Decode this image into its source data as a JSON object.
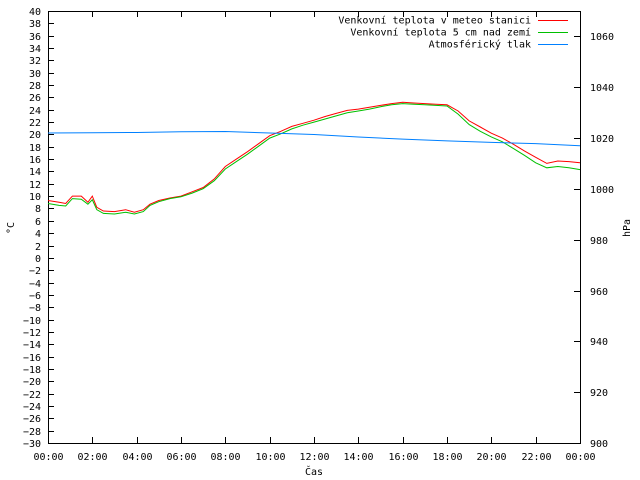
{
  "chart_data": {
    "type": "line",
    "title": "",
    "xlabel": "Čas",
    "ylabel": "°C",
    "y2label": "hPa",
    "xlim": [
      0,
      24
    ],
    "ylim": [
      -30,
      40
    ],
    "y2lim": [
      900,
      1070
    ],
    "x_ticks": [
      "00:00",
      "02:00",
      "04:00",
      "06:00",
      "08:00",
      "10:00",
      "12:00",
      "14:00",
      "16:00",
      "18:00",
      "20:00",
      "22:00",
      "00:00"
    ],
    "y_ticks": [
      40,
      38,
      36,
      34,
      32,
      30,
      28,
      26,
      24,
      22,
      20,
      18,
      16,
      14,
      12,
      10,
      8,
      6,
      4,
      2,
      0,
      -2,
      -4,
      -6,
      -8,
      -10,
      -12,
      -14,
      -16,
      -18,
      -20,
      -22,
      -24,
      -26,
      -28,
      -30
    ],
    "y2_ticks": [
      1060,
      1040,
      1020,
      1000,
      980,
      960,
      940,
      920,
      900
    ],
    "legend_position": "top-right",
    "grid": false,
    "series": [
      {
        "name": "Venkovní teplota v meteo stanici",
        "color": "#ff0000",
        "axis": "left",
        "x": [
          0,
          0.5,
          0.8,
          1.1,
          1.5,
          1.8,
          2.0,
          2.2,
          2.5,
          3.0,
          3.5,
          3.9,
          4.3,
          4.6,
          5.0,
          5.5,
          6.0,
          6.5,
          7.0,
          7.5,
          8.0,
          8.5,
          9.0,
          9.5,
          10.0,
          10.5,
          11.0,
          11.5,
          12.0,
          12.5,
          13.0,
          13.5,
          14.0,
          14.5,
          15.0,
          15.5,
          16.0,
          16.5,
          17.0,
          17.5,
          18.0,
          18.5,
          19.0,
          19.5,
          20.0,
          20.5,
          21.0,
          21.5,
          22.0,
          22.5,
          23.0,
          23.5,
          24.0
        ],
        "values": [
          9.3,
          9.0,
          8.8,
          10.0,
          10.0,
          9.0,
          10.0,
          8.2,
          7.6,
          7.5,
          7.8,
          7.4,
          7.8,
          8.7,
          9.3,
          9.7,
          10.0,
          10.7,
          11.4,
          12.8,
          14.8,
          16.0,
          17.2,
          18.5,
          19.8,
          20.5,
          21.3,
          21.8,
          22.3,
          22.9,
          23.4,
          23.9,
          24.1,
          24.4,
          24.7,
          25.0,
          25.2,
          25.1,
          25.0,
          24.9,
          24.8,
          23.8,
          22.2,
          21.2,
          20.2,
          19.4,
          18.4,
          17.3,
          16.3,
          15.3,
          15.7,
          15.6,
          15.4
        ]
      },
      {
        "name": "Venkovní teplota 5 cm nad zemí",
        "color": "#00c000",
        "axis": "left",
        "x": [
          0,
          0.5,
          0.8,
          1.1,
          1.5,
          1.8,
          2.0,
          2.2,
          2.5,
          3.0,
          3.5,
          3.9,
          4.3,
          4.6,
          5.0,
          5.5,
          6.0,
          6.5,
          7.0,
          7.5,
          8.0,
          8.5,
          9.0,
          9.5,
          10.0,
          10.5,
          11.0,
          11.5,
          12.0,
          12.5,
          13.0,
          13.5,
          14.0,
          14.5,
          15.0,
          15.5,
          16.0,
          16.5,
          17.0,
          17.5,
          18.0,
          18.5,
          19.0,
          19.5,
          20.0,
          20.5,
          21.0,
          21.5,
          22.0,
          22.5,
          23.0,
          23.5,
          24.0
        ],
        "values": [
          8.8,
          8.5,
          8.4,
          9.6,
          9.5,
          8.7,
          9.4,
          7.8,
          7.2,
          7.1,
          7.4,
          7.1,
          7.5,
          8.5,
          9.1,
          9.6,
          9.9,
          10.5,
          11.2,
          12.5,
          14.4,
          15.6,
          16.8,
          18.1,
          19.4,
          20.1,
          20.9,
          21.5,
          22.0,
          22.5,
          23.0,
          23.5,
          23.8,
          24.1,
          24.5,
          24.8,
          25.0,
          24.9,
          24.8,
          24.7,
          24.6,
          23.3,
          21.6,
          20.5,
          19.6,
          18.8,
          17.7,
          16.6,
          15.4,
          14.6,
          14.8,
          14.6,
          14.3
        ]
      },
      {
        "name": "Atmosférický tlak",
        "color": "#0080ff",
        "axis": "right",
        "x": [
          0,
          2,
          4,
          6,
          8,
          10,
          11,
          12,
          14,
          16,
          18,
          20,
          22,
          24
        ],
        "values": [
          1022.0,
          1022.1,
          1022.2,
          1022.5,
          1022.6,
          1022.0,
          1021.7,
          1021.4,
          1020.4,
          1019.6,
          1018.9,
          1018.3,
          1017.8,
          1017.0
        ]
      }
    ]
  }
}
